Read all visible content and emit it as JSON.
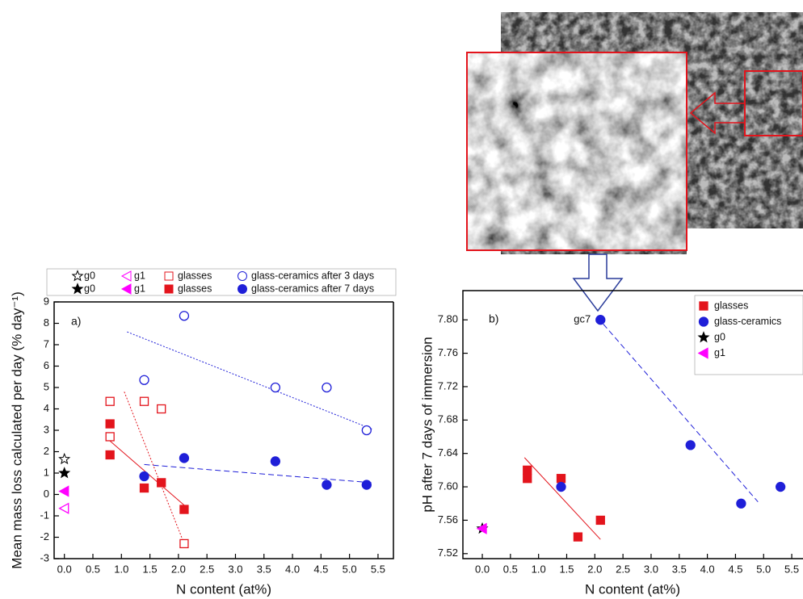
{
  "chart_data": [
    {
      "type": "scatter",
      "annotation": "a)",
      "xlabel": "N content (at%)",
      "ylabel": "Mean mass loss calculated per day (% day⁻¹)",
      "xlim": [
        -0.18,
        5.77
      ],
      "ylim": [
        -3,
        9
      ],
      "xticks": [
        {
          "value": 0,
          "label": "0.0"
        },
        0.5,
        {
          "value": 1,
          "label": "1.0"
        },
        1.5,
        {
          "value": 2,
          "label": "2.0"
        },
        2.5,
        {
          "value": 3,
          "label": "3.0"
        },
        3.5,
        {
          "value": 4,
          "label": "4.0"
        },
        4.5,
        {
          "value": 5,
          "label": "5.0"
        },
        5.5
      ],
      "yticks": [
        -3,
        -2,
        -1,
        0,
        1,
        2,
        3,
        4,
        5,
        6,
        7,
        8,
        9
      ],
      "legend": "top-rows",
      "series": [
        {
          "name": "g0",
          "color": "#000000",
          "marker": "star",
          "filled": false,
          "x": [
            0
          ],
          "values": [
            1.65
          ]
        },
        {
          "name": "g1",
          "color": "#ff00ff",
          "marker": "triangle-left",
          "filled": false,
          "x": [
            0
          ],
          "values": [
            -0.65
          ]
        },
        {
          "name": "glasses",
          "color": "#e3141c",
          "marker": "square",
          "filled": false,
          "x": [
            0.8,
            0.8,
            1.4,
            1.7,
            2.1
          ],
          "values": [
            4.35,
            2.7,
            4.35,
            4.0,
            -2.3
          ]
        },
        {
          "name": "glass-ceramics after 3 days",
          "color": "#1f1fd8",
          "marker": "circle",
          "filled": false,
          "x": [
            1.4,
            2.1,
            3.7,
            4.6,
            5.3
          ],
          "values": [
            5.35,
            8.35,
            5.0,
            5.0,
            3.0
          ]
        },
        {
          "name": "g0",
          "color": "#000000",
          "marker": "star",
          "filled": true,
          "x": [
            0
          ],
          "values": [
            1.0
          ]
        },
        {
          "name": "g1",
          "color": "#ff00ff",
          "marker": "triangle-left",
          "filled": true,
          "x": [
            0
          ],
          "values": [
            0.15
          ]
        },
        {
          "name": "glasses",
          "color": "#e3141c",
          "marker": "square",
          "filled": true,
          "x": [
            0.8,
            0.8,
            1.4,
            1.7,
            2.1
          ],
          "values": [
            3.3,
            1.85,
            0.3,
            0.55,
            -0.7
          ]
        },
        {
          "name": "glass-ceramics after 7 days",
          "color": "#1f1fd8",
          "marker": "circle",
          "filled": true,
          "x": [
            1.4,
            2.1,
            3.7,
            4.6,
            5.3
          ],
          "values": [
            0.85,
            1.7,
            1.55,
            0.45,
            0.45
          ]
        }
      ],
      "fits": [
        {
          "color": "#e3141c",
          "dash": "2,2",
          "x": [
            1.05,
            2.1
          ],
          "values": [
            4.8,
            -2.3
          ]
        },
        {
          "color": "#e3141c",
          "dash": "none",
          "x": [
            0.8,
            2.1
          ],
          "values": [
            2.5,
            -0.5
          ]
        },
        {
          "color": "#1f1fd8",
          "dash": "2,2",
          "x": [
            1.1,
            5.4
          ],
          "values": [
            7.6,
            3.05
          ]
        },
        {
          "color": "#1f1fd8",
          "dash": "7,4",
          "x": [
            1.4,
            5.4
          ],
          "values": [
            1.4,
            0.55
          ]
        }
      ]
    },
    {
      "type": "scatter",
      "annotation": "b)",
      "point_label": "gc7",
      "xlabel": "N content (at%)",
      "ylabel": "pH after 7 days of immersion",
      "xlim": [
        -0.345,
        5.7
      ],
      "ylim": [
        7.514,
        7.835
      ],
      "xticks": [
        {
          "value": 0,
          "label": "0.0"
        },
        0.5,
        {
          "value": 1,
          "label": "1.0"
        },
        1.5,
        {
          "value": 2,
          "label": "2.0"
        },
        2.5,
        {
          "value": 3,
          "label": "3.0"
        },
        3.5,
        {
          "value": 4,
          "label": "4.0"
        },
        4.5,
        {
          "value": 5,
          "label": "5.0"
        },
        5.5
      ],
      "yticks": [
        7.52,
        7.56,
        {
          "value": 7.6,
          "label": "7.60"
        },
        7.64,
        7.68,
        7.72,
        7.76,
        {
          "value": 7.8,
          "label": "7.80"
        }
      ],
      "legend": "upper-right",
      "series": [
        {
          "name": "glasses",
          "color": "#e3141c",
          "marker": "square",
          "filled": true,
          "x": [
            0.8,
            0.8,
            1.4,
            1.7,
            2.1
          ],
          "values": [
            7.62,
            7.61,
            7.61,
            7.54,
            7.56
          ]
        },
        {
          "name": "glass-ceramics",
          "color": "#1f1fd8",
          "marker": "circle",
          "filled": true,
          "x": [
            1.4,
            2.1,
            3.7,
            4.6,
            5.3
          ],
          "values": [
            7.6,
            7.8,
            7.65,
            7.58,
            7.6
          ]
        },
        {
          "name": "g0",
          "color": "#000000",
          "marker": "star",
          "filled": true,
          "x": [
            0
          ],
          "values": [
            7.55
          ]
        },
        {
          "name": "g1",
          "color": "#ff00ff",
          "marker": "triangle-left",
          "filled": true,
          "x": [
            0
          ],
          "values": [
            7.55
          ]
        }
      ],
      "fits": [
        {
          "color": "#e3141c",
          "dash": "none",
          "x": [
            0.75,
            2.1
          ],
          "values": [
            7.635,
            7.537
          ]
        },
        {
          "color": "#1f1fd8",
          "dash": "7,4",
          "x": [
            2.15,
            4.9
          ],
          "values": [
            7.795,
            7.582
          ]
        }
      ]
    }
  ]
}
